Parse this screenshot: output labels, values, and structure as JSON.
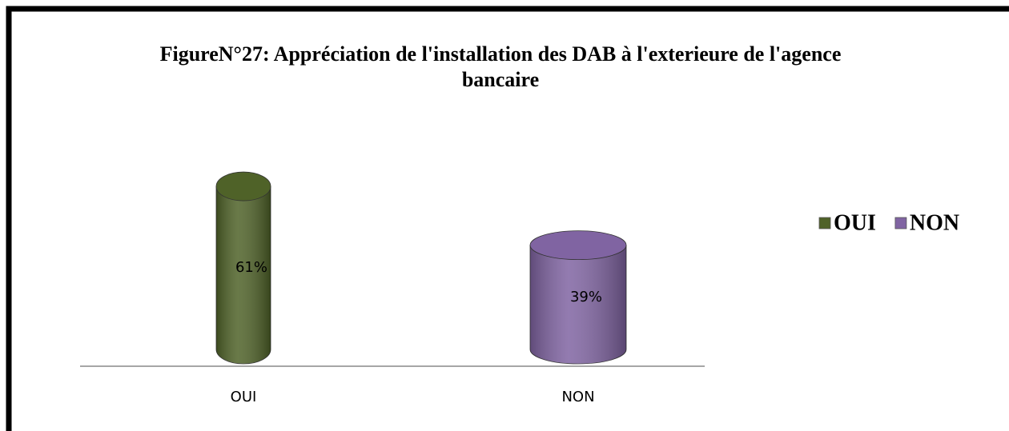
{
  "chart_data": {
    "type": "bar",
    "title": "FigureN°27: Appréciation de l'installation des DAB à l'exterieure de l'agence bancaire",
    "categories": [
      "OUI",
      "NON"
    ],
    "series": [
      {
        "name": "OUI",
        "color": "#4f6228",
        "values": [
          61,
          null
        ],
        "value_labels": [
          "61%",
          null
        ]
      },
      {
        "name": "NON",
        "color": "#8064a2",
        "values": [
          null,
          39
        ],
        "value_labels": [
          null,
          "39%"
        ]
      }
    ],
    "ylim": [
      0,
      70
    ],
    "legend": "right"
  }
}
